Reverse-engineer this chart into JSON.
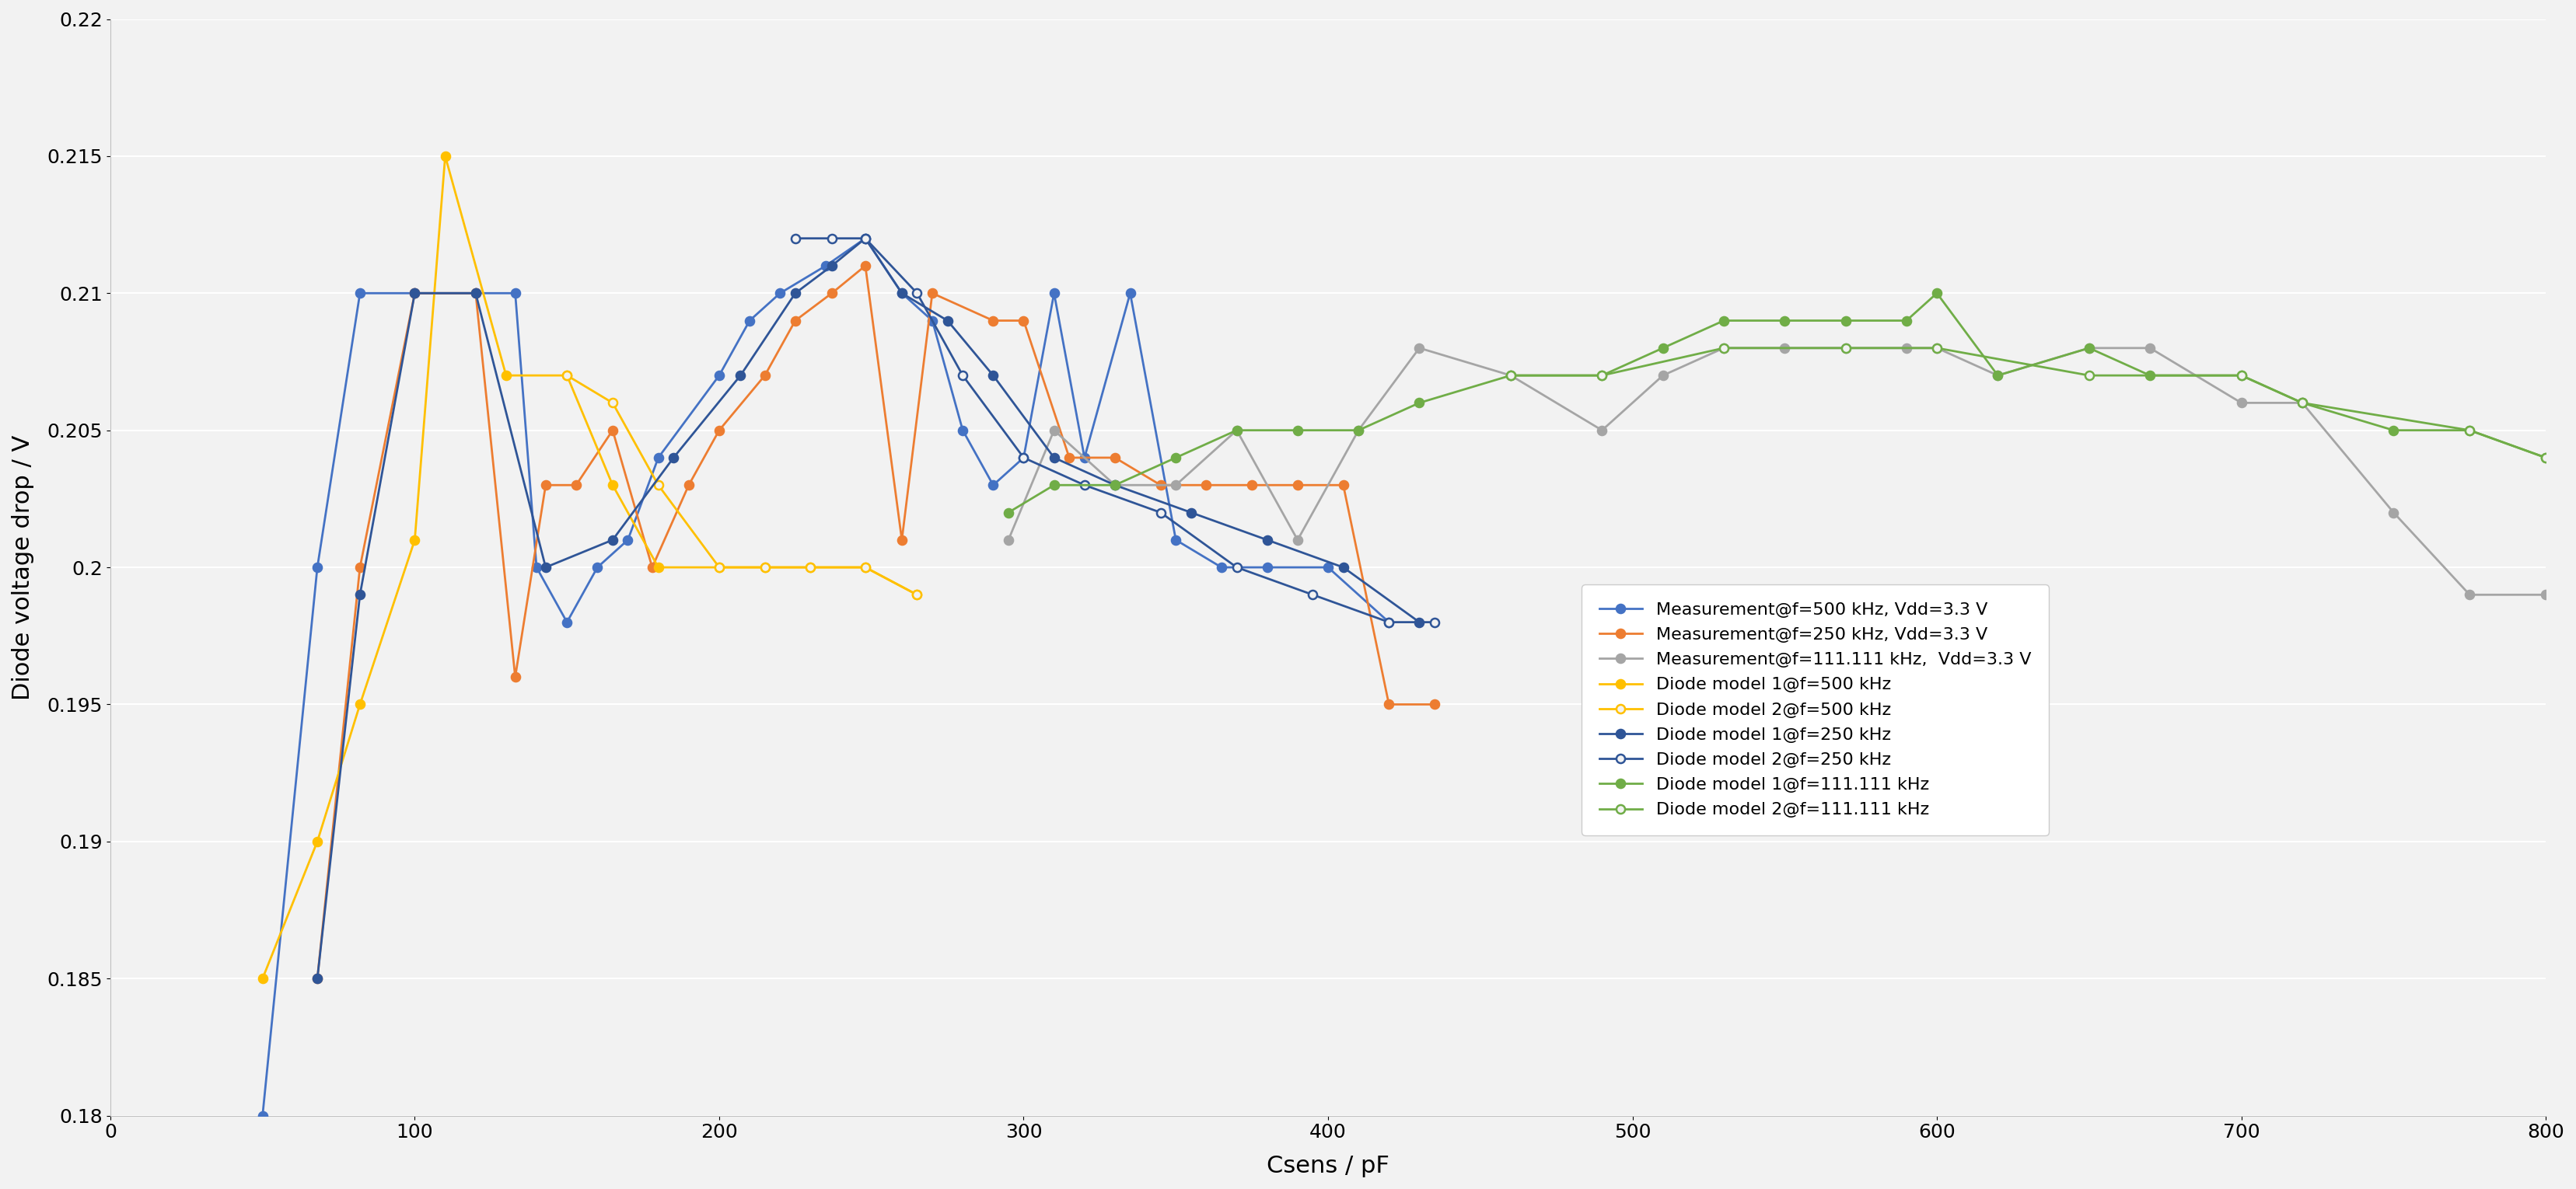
{
  "xlabel": "Csens / pF",
  "ylabel": "Diode voltage drop / V",
  "xlim": [
    0,
    800
  ],
  "ylim": [
    0.18,
    0.22
  ],
  "yticks": [
    0.18,
    0.185,
    0.19,
    0.195,
    0.2,
    0.205,
    0.21,
    0.215,
    0.22
  ],
  "xticks": [
    0,
    100,
    200,
    300,
    400,
    500,
    600,
    700,
    800
  ],
  "background_color": "#f2f2f2",
  "grid_color": "#ffffff",
  "series": [
    {
      "label": "Measurement@f=500 kHz, Vdd=3.3 V",
      "color": "#4472C4",
      "filled": true,
      "x": [
        50,
        68,
        82,
        100,
        120,
        133,
        140,
        150,
        160,
        170,
        180,
        200,
        210,
        220,
        235,
        248,
        260,
        270,
        280,
        290,
        300,
        310,
        320,
        335,
        350,
        365,
        380,
        400,
        420
      ],
      "y": [
        0.18,
        0.2,
        0.21,
        0.21,
        0.21,
        0.21,
        0.2,
        0.198,
        0.2,
        0.201,
        0.204,
        0.207,
        0.209,
        0.21,
        0.211,
        0.212,
        0.21,
        0.209,
        0.205,
        0.203,
        0.204,
        0.21,
        0.204,
        0.21,
        0.201,
        0.2,
        0.2,
        0.2,
        0.198
      ]
    },
    {
      "label": "Measurement@f=250 kHz, Vdd=3.3 V",
      "color": "#ED7D31",
      "filled": true,
      "x": [
        68,
        82,
        100,
        120,
        133,
        143,
        153,
        165,
        178,
        190,
        200,
        215,
        225,
        237,
        248,
        260,
        270,
        290,
        300,
        315,
        330,
        345,
        360,
        375,
        390,
        405,
        420,
        435
      ],
      "y": [
        0.185,
        0.2,
        0.21,
        0.21,
        0.196,
        0.203,
        0.203,
        0.205,
        0.2,
        0.203,
        0.205,
        0.207,
        0.209,
        0.21,
        0.211,
        0.201,
        0.21,
        0.209,
        0.209,
        0.204,
        0.204,
        0.203,
        0.203,
        0.203,
        0.203,
        0.203,
        0.195,
        0.195
      ]
    },
    {
      "label": "Measurement@f=111.111 kHz,  Vdd=3.3 V",
      "color": "#A5A5A5",
      "filled": true,
      "x": [
        295,
        310,
        330,
        350,
        370,
        390,
        410,
        430,
        460,
        490,
        510,
        530,
        550,
        570,
        590,
        600,
        620,
        650,
        670,
        700,
        720,
        750,
        775,
        800
      ],
      "y": [
        0.201,
        0.205,
        0.203,
        0.203,
        0.205,
        0.201,
        0.205,
        0.208,
        0.207,
        0.205,
        0.207,
        0.208,
        0.208,
        0.208,
        0.208,
        0.208,
        0.207,
        0.208,
        0.208,
        0.206,
        0.206,
        0.202,
        0.199,
        0.199
      ]
    },
    {
      "label": "Diode model 1@f=500 kHz",
      "color": "#FFC000",
      "filled": true,
      "x": [
        50,
        68,
        82,
        100,
        110,
        130,
        150,
        165,
        180,
        200,
        215,
        230,
        248,
        265
      ],
      "y": [
        0.185,
        0.19,
        0.195,
        0.201,
        0.215,
        0.207,
        0.207,
        0.203,
        0.2,
        0.2,
        0.2,
        0.2,
        0.2,
        0.199
      ]
    },
    {
      "label": "Diode model 2@f=500 kHz",
      "color": "#FFC000",
      "filled": false,
      "x": [
        150,
        165,
        180,
        200,
        215,
        230,
        248,
        265
      ],
      "y": [
        0.207,
        0.206,
        0.203,
        0.2,
        0.2,
        0.2,
        0.2,
        0.199
      ]
    },
    {
      "label": "Diode model 1@f=250 kHz",
      "color": "#2F5597",
      "filled": true,
      "x": [
        68,
        82,
        100,
        120,
        143,
        165,
        185,
        207,
        225,
        237,
        248,
        260,
        275,
        290,
        310,
        330,
        355,
        380,
        405,
        430
      ],
      "y": [
        0.185,
        0.199,
        0.21,
        0.21,
        0.2,
        0.201,
        0.204,
        0.207,
        0.21,
        0.211,
        0.212,
        0.21,
        0.209,
        0.207,
        0.204,
        0.203,
        0.202,
        0.201,
        0.2,
        0.198
      ]
    },
    {
      "label": "Diode model 2@f=250 kHz",
      "color": "#2F5597",
      "filled": false,
      "x": [
        225,
        237,
        248,
        265,
        280,
        300,
        320,
        345,
        370,
        395,
        420,
        435
      ],
      "y": [
        0.212,
        0.212,
        0.212,
        0.21,
        0.207,
        0.204,
        0.203,
        0.202,
        0.2,
        0.199,
        0.198,
        0.198
      ]
    },
    {
      "label": "Diode model 1@f=111.111 kHz",
      "color": "#70AD47",
      "filled": true,
      "x": [
        295,
        310,
        330,
        350,
        370,
        390,
        410,
        430,
        460,
        490,
        510,
        530,
        550,
        570,
        590,
        600,
        620,
        650,
        670,
        700,
        720,
        750,
        775,
        800
      ],
      "y": [
        0.202,
        0.203,
        0.203,
        0.204,
        0.205,
        0.205,
        0.205,
        0.206,
        0.207,
        0.207,
        0.208,
        0.209,
        0.209,
        0.209,
        0.209,
        0.21,
        0.207,
        0.208,
        0.207,
        0.207,
        0.206,
        0.205,
        0.205,
        0.204
      ]
    },
    {
      "label": "Diode model 2@f=111.111 kHz",
      "color": "#70AD47",
      "filled": false,
      "x": [
        460,
        490,
        530,
        570,
        600,
        650,
        700,
        720,
        775,
        800
      ],
      "y": [
        0.207,
        0.207,
        0.208,
        0.208,
        0.208,
        0.207,
        0.207,
        0.206,
        0.205,
        0.204
      ]
    }
  ]
}
